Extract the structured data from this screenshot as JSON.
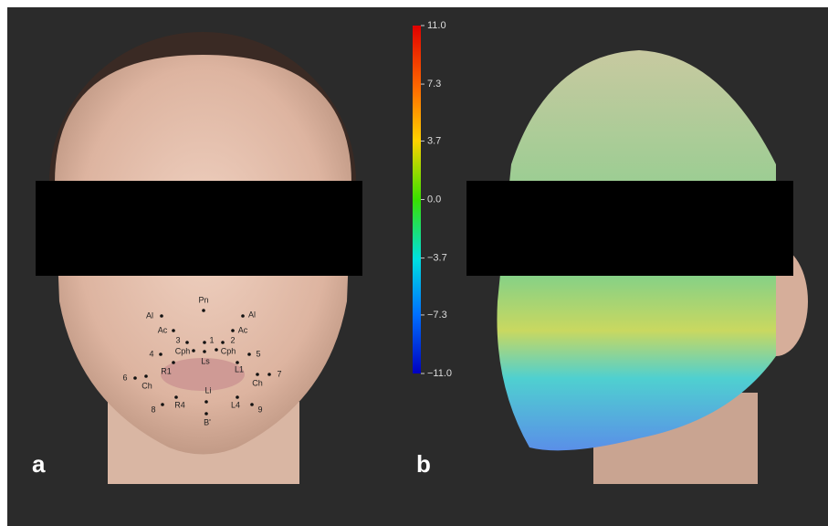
{
  "panels": [
    {
      "label": "a"
    },
    {
      "label": "b"
    }
  ],
  "landmarks": [
    "Pn",
    "Al",
    "Al",
    "Ac",
    "Ac",
    "3",
    "1",
    "2",
    "Cph",
    "Ls",
    "Cph",
    "4",
    "5",
    "R1",
    "L1",
    "6",
    "Ch",
    "Ch",
    "7",
    "Li",
    "R4",
    "L4",
    "8",
    "9",
    "B'"
  ],
  "colorbar": {
    "lim": [
      -11,
      11
    ],
    "ticks": [
      {
        "value": 11,
        "label": "11.0"
      },
      {
        "value": 7.3,
        "label": "7.3"
      },
      {
        "value": 3.7,
        "label": "3.7"
      },
      {
        "value": 0,
        "label": "0.0"
      },
      {
        "value": -3.7,
        "label": "−3.7"
      },
      {
        "value": -7.3,
        "label": "−7.3"
      },
      {
        "value": -11,
        "label": "−11.0"
      }
    ]
  }
}
